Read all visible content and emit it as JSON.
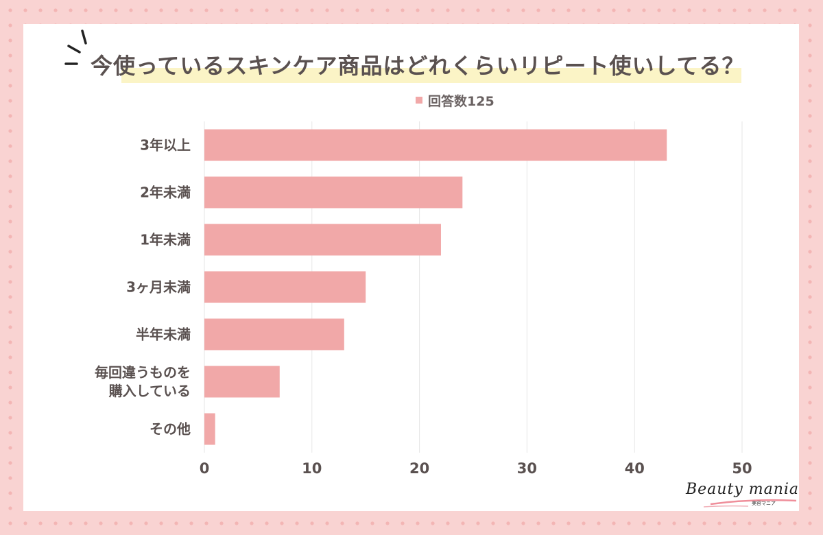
{
  "title": "今使っているスキンケア商品はどれくらいリピート使いしてる？",
  "logo": {
    "text": "Beauty mania",
    "sub": "美容マニア"
  },
  "chart_data": {
    "type": "bar",
    "orientation": "horizontal",
    "title": "今使っているスキンケア商品はどれくらいリピート使いしてる？",
    "categories": [
      "3年以上",
      "2年未満",
      "1年未満",
      "3ヶ月未満",
      "半年未満",
      "毎回違うものを\n購入している",
      "その他"
    ],
    "series": [
      {
        "name": "回答数125",
        "values": [
          43,
          24,
          22,
          15,
          13,
          7,
          1
        ],
        "color": "#f1a8a8"
      }
    ],
    "xlim": [
      0,
      50
    ],
    "xticks": [
      0,
      10,
      20,
      30,
      40,
      50
    ],
    "grid": true,
    "legend": "top-center",
    "colors": {
      "bar": "#f1a8a8",
      "grid": "#e6e6e6",
      "label": "#5a5150"
    }
  }
}
